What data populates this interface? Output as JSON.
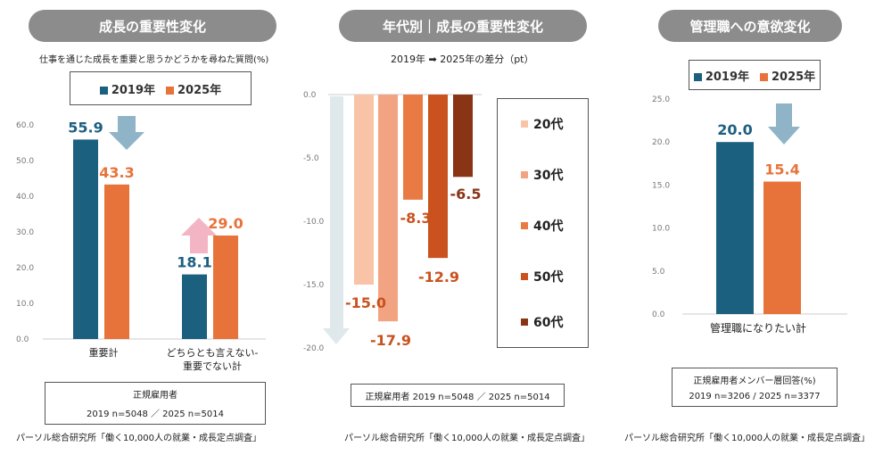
{
  "colors": {
    "c2019": "#1c6080",
    "c2025": "#e8733a",
    "pill": "#8c8c8c",
    "downArrow": "#8fb4c8",
    "upArrow": "#f3b5c3",
    "age20": "#f8c3a6",
    "age30": "#f2a482",
    "age40": "#ea7a43",
    "age50": "#c9521f",
    "age60": "#8a3416",
    "bigArrow": "#dfe9ec"
  },
  "panel1": {
    "title": "成長の重要性変化",
    "subtitle": "仕事を通じた成長を重要と思うかどうかを尋ねた質問(%)",
    "legend": [
      "2019年",
      "2025年"
    ],
    "note_line1": "正規雇用者",
    "note_line2": "2019 n=5048 ／ 2025 n=5014",
    "source": "パーソル総合研究所「働く10,000人の就業・成長定点調査」"
  },
  "panel2": {
    "title": "年代別｜成長の重要性変化",
    "subtitle": "2019年 ➡ 2025年の差分（pt）",
    "note": "正規雇用者  2019 n=5048 ／ 2025 n=5014",
    "source": "パーソル総合研究所「働く10,000人の就業・成長定点調査」"
  },
  "panel3": {
    "title": "管理職への意欲変化",
    "legend": [
      "2019年",
      "2025年"
    ],
    "note_line1": "正規雇用者メンバー層回答(%)",
    "note_line2": "2019 n=3206 / 2025 n=3377",
    "source": "パーソル総合研究所「働く10,000人の就業・成長定点調査」"
  },
  "chart_data": [
    {
      "type": "bar",
      "categories": [
        "重要計",
        "どちらとも言えない-重要でない計"
      ],
      "series": [
        {
          "name": "2019年",
          "values": [
            55.9,
            18.1
          ]
        },
        {
          "name": "2025年",
          "values": [
            43.3,
            29.0
          ]
        }
      ],
      "yticks": [
        "0.0",
        "10.0",
        "20.0",
        "30.0",
        "40.0",
        "50.0",
        "60.0"
      ],
      "ylim": [
        0,
        60
      ],
      "title": "成長の重要性変化"
    },
    {
      "type": "bar",
      "categories": [
        "20代",
        "30代",
        "40代",
        "50代",
        "60代"
      ],
      "values": [
        -15.0,
        -17.9,
        -8.3,
        -12.9,
        -6.5
      ],
      "labels": [
        "-15.0",
        "-17.9",
        "-8.3",
        "-12.9",
        "-6.5"
      ],
      "yticks": [
        "0.0",
        "-5.0",
        "-10.0",
        "-15.0",
        "-20.0"
      ],
      "ylim": [
        -20,
        0
      ],
      "title": "年代別｜成長の重要性変化"
    },
    {
      "type": "bar",
      "categories": [
        "管理職になりたい計"
      ],
      "series": [
        {
          "name": "2019年",
          "values": [
            20.0
          ]
        },
        {
          "name": "2025年",
          "values": [
            15.4
          ]
        }
      ],
      "yticks": [
        "0.0",
        "5.0",
        "10.0",
        "15.0",
        "20.0",
        "25.0"
      ],
      "ylim": [
        0,
        25
      ],
      "title": "管理職への意欲変化"
    }
  ]
}
